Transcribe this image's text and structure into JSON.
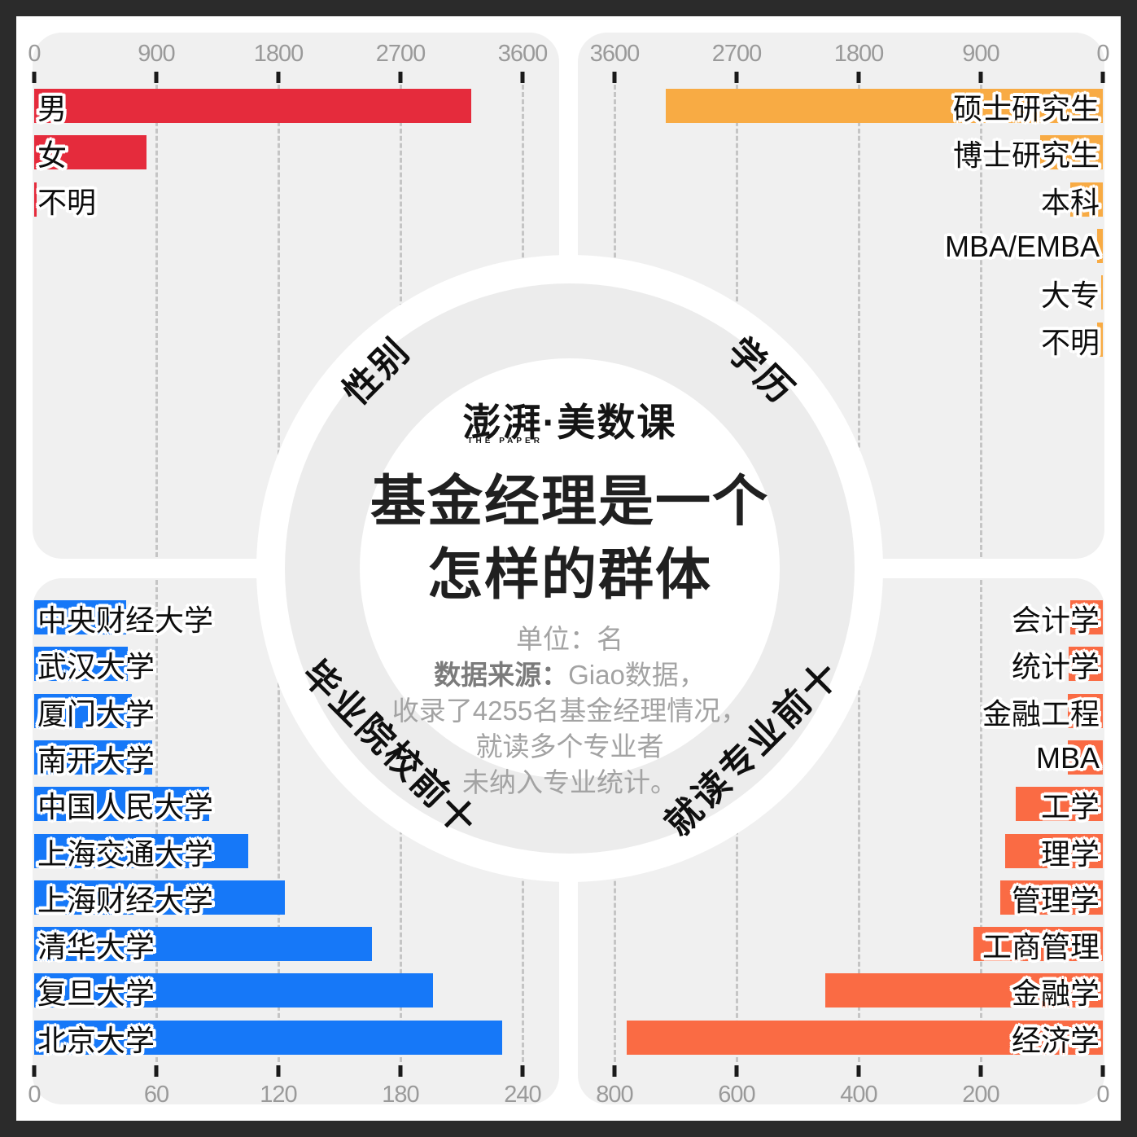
{
  "center": {
    "logo": "澎湃·美数课",
    "logo_sub": "THE PAPER",
    "title_line1": "基金经理是一个",
    "title_line2": "怎样的群体",
    "unit": "单位：名",
    "source_bold": "数据来源：",
    "source_rest": "Giao数据，",
    "note_line2": "收录了4255名基金经理情况，",
    "note_line3": "就读多个专业者",
    "note_line4": "未纳入专业统计。"
  },
  "palette": {
    "frame": "#2b2b2b",
    "panel_gray": "#f0f0f0",
    "ring_gray": "#ececec",
    "gender_red": "#e52b3c",
    "education_amber": "#f8ab44",
    "schools_blue": "#1678f8",
    "majors_tomato": "#fa6b44",
    "axis_text": "#9a9a9a",
    "gridline": "#c5c5c5"
  },
  "chart_data": [
    {
      "id": "gender",
      "section_label": "性别",
      "type": "bar",
      "orientation": "horizontal",
      "bar_color": "#e52b3c",
      "axis": {
        "side": "top",
        "zero": "left",
        "max": 3600,
        "ticks": [
          0,
          900,
          1800,
          2700,
          3600
        ],
        "grid": "dashed"
      },
      "categories": [
        "男",
        "女",
        "不明"
      ],
      "values": [
        3220,
        825,
        15
      ]
    },
    {
      "id": "education",
      "section_label": "学历",
      "type": "bar",
      "orientation": "horizontal",
      "bar_color": "#f8ab44",
      "axis": {
        "side": "top",
        "zero": "right",
        "max": 3600,
        "ticks": [
          3600,
          2700,
          1800,
          900,
          0
        ],
        "grid": "dashed"
      },
      "categories": [
        "硕士研究生",
        "博士研究生",
        "本科",
        "MBA/EMBA",
        "大专",
        "不明"
      ],
      "values": [
        3225,
        465,
        240,
        40,
        15,
        45
      ]
    },
    {
      "id": "schools",
      "section_label": "毕业院校前十",
      "type": "bar",
      "orientation": "horizontal",
      "bar_color": "#1678f8",
      "axis": {
        "side": "bottom",
        "zero": "left",
        "max": 240,
        "ticks": [
          0,
          60,
          120,
          180,
          240
        ],
        "grid": "dashed"
      },
      "categories": [
        "中央财经大学",
        "武汉大学",
        "厦门大学",
        "南开大学",
        "中国人民大学",
        "上海交通大学",
        "上海财经大学",
        "清华大学",
        "复旦大学",
        "北京大学"
      ],
      "values": [
        45,
        46,
        48,
        58,
        86,
        105,
        123,
        166,
        196,
        230
      ]
    },
    {
      "id": "majors",
      "section_label": "就读专业前十",
      "type": "bar",
      "orientation": "horizontal",
      "bar_color": "#fa6b44",
      "axis": {
        "side": "bottom",
        "zero": "right",
        "max": 800,
        "ticks": [
          800,
          600,
          400,
          200,
          0
        ],
        "grid": "dashed"
      },
      "categories": [
        "会计学",
        "统计学",
        "金融工程",
        "MBA",
        "工学",
        "理学",
        "管理学",
        "工商管理",
        "金融学",
        "经济学"
      ],
      "values": [
        54,
        56,
        57,
        58,
        143,
        160,
        168,
        212,
        455,
        780
      ]
    }
  ]
}
